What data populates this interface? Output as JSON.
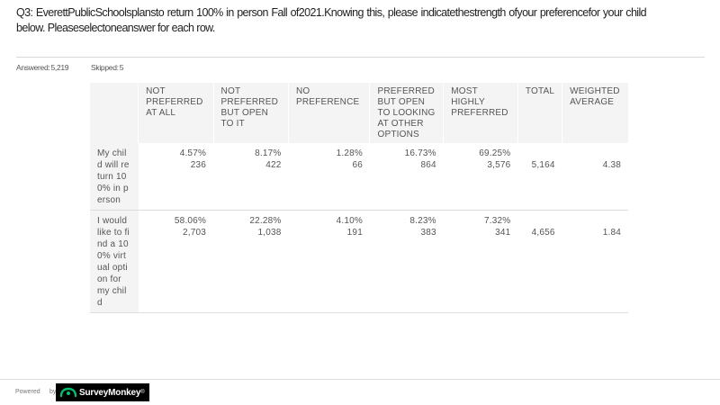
{
  "question": {
    "text": "Q3: EverettPublicSchoolsplansto return 100% in person Fall of2021.Knowing this, please indicatethestrength ofyour preferencefor your child below. Pleaseselectoneanswer for each row."
  },
  "stats": {
    "answered_label": "Answered:",
    "answered_value": "5,219",
    "skipped_label": "Skipped:",
    "skipped_value": "5"
  },
  "table": {
    "headers": [
      "NOT PREFERRED AT ALL",
      "NOT PREFERRED BUT OPEN TO IT",
      "NO PREFERENCE",
      "PREFERRED BUT OPEN TO LOOKING AT OTHER OPTIONS",
      "MOST HIGHLY PREFERRED",
      "TOTAL",
      "WEIGHTED AVERAGE"
    ],
    "rows": [
      {
        "label": "My child will return 100% in person",
        "cells": [
          {
            "pct": "4.57%",
            "count": "236"
          },
          {
            "pct": "8.17%",
            "count": "422"
          },
          {
            "pct": "1.28%",
            "count": "66"
          },
          {
            "pct": "16.73%",
            "count": "864"
          },
          {
            "pct": "69.25%",
            "count": "3,576"
          }
        ],
        "total": "5,164",
        "weighted_average": "4.38"
      },
      {
        "label": "I would like to find a 100% virtual option for my child",
        "cells": [
          {
            "pct": "58.06%",
            "count": "2,703"
          },
          {
            "pct": "22.28%",
            "count": "1,038"
          },
          {
            "pct": "4.10%",
            "count": "191"
          },
          {
            "pct": "8.23%",
            "count": "383"
          },
          {
            "pct": "7.32%",
            "count": "341"
          }
        ],
        "total": "4,656",
        "weighted_average": "1.84"
      }
    ]
  },
  "footer": {
    "powered": "Powered",
    "by": "by",
    "brand": "SurveyMonkey",
    "brand_suffix": "®",
    "brand_color": "#00bf6f"
  }
}
